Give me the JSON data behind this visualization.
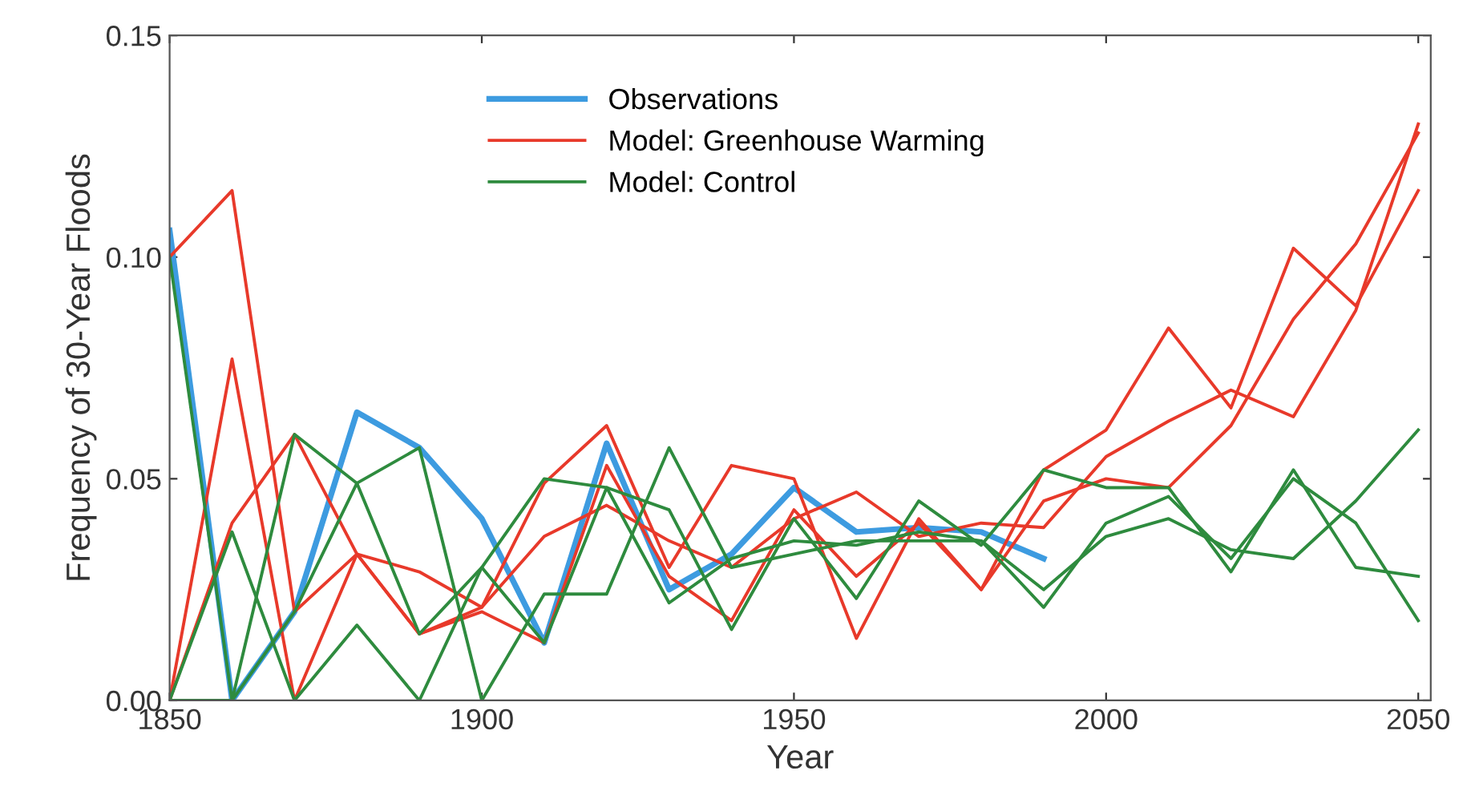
{
  "chart_data": {
    "type": "line",
    "xlabel": "Year",
    "ylabel": "Frequency of 30-Year Floods",
    "xlim": [
      1850,
      2052
    ],
    "xticks": [
      1850,
      1900,
      1950,
      2000,
      2050
    ],
    "ylim": [
      0,
      0.15
    ],
    "yticks": [
      {
        "value": 0,
        "label": "0.00"
      },
      {
        "value": 0.05,
        "label": "0.05"
      },
      {
        "value": 0.1,
        "label": "0.10"
      },
      {
        "value": 0.15,
        "label": "0.15"
      }
    ],
    "grid": false,
    "legend": "top",
    "marker": "none",
    "line_style": "solid",
    "series": [
      {
        "name": "Observations",
        "color": "#3d9be0",
        "x": [
          1850,
          1860,
          1870,
          1880,
          1890,
          1900,
          1910,
          1920,
          1930,
          1940,
          1950,
          1960,
          1970,
          1980,
          1990
        ],
        "values": [
          0.106,
          0.0,
          0.02,
          0.065,
          0.057,
          0.041,
          0.013,
          0.058,
          0.025,
          0.033,
          0.048,
          0.038,
          0.039,
          0.038,
          0.032
        ]
      },
      {
        "name": "Model: Greenhouse Warming",
        "color": "#e8392a",
        "x": [
          1850,
          1860,
          1870,
          1880,
          1890,
          1900,
          1910,
          1920,
          1930,
          1940,
          1950,
          1960,
          1970,
          1980,
          1990,
          2000,
          2010,
          2020,
          2030,
          2040,
          2050
        ],
        "values": [
          0.1,
          0.115,
          0.02,
          0.033,
          0.029,
          0.021,
          0.037,
          0.044,
          0.036,
          0.03,
          0.041,
          0.047,
          0.037,
          0.04,
          0.039,
          0.055,
          0.063,
          0.07,
          0.064,
          0.088,
          0.13
        ]
      },
      {
        "color": "#e8392a",
        "x": [
          1850,
          1860,
          1870,
          1880,
          1890,
          1900,
          1910,
          1920,
          1930,
          1940,
          1950,
          1960,
          1970,
          1980,
          1990,
          2000,
          2010,
          2020,
          2030,
          2040,
          2050
        ],
        "values": [
          0.0,
          0.077,
          0.0,
          0.033,
          0.015,
          0.021,
          0.049,
          0.062,
          0.03,
          0.053,
          0.05,
          0.014,
          0.041,
          0.025,
          0.052,
          0.061,
          0.084,
          0.066,
          0.102,
          0.089,
          0.115
        ]
      },
      {
        "color": "#e8392a",
        "x": [
          1850,
          1860,
          1870,
          1880,
          1890,
          1900,
          1910,
          1920,
          1930,
          1940,
          1950,
          1960,
          1970,
          1980,
          1990,
          2000,
          2010,
          2020,
          2030,
          2040,
          2050
        ],
        "values": [
          0.0,
          0.04,
          0.06,
          0.033,
          0.015,
          0.02,
          0.013,
          0.053,
          0.028,
          0.018,
          0.043,
          0.028,
          0.04,
          0.025,
          0.045,
          0.05,
          0.048,
          0.062,
          0.086,
          0.103,
          0.128
        ]
      },
      {
        "name": "Model: Control",
        "color": "#2e8b3e",
        "x": [
          1850,
          1860,
          1870,
          1880,
          1890,
          1900,
          1910,
          1920,
          1930,
          1940,
          1950,
          1960,
          1970,
          1980,
          1990,
          2000,
          2010,
          2020,
          2030,
          2040,
          2050
        ],
        "values": [
          0.1,
          0.0,
          0.06,
          0.049,
          0.015,
          0.03,
          0.013,
          0.048,
          0.043,
          0.016,
          0.041,
          0.023,
          0.045,
          0.035,
          0.052,
          0.048,
          0.048,
          0.029,
          0.052,
          0.03,
          0.028
        ]
      },
      {
        "color": "#2e8b3e",
        "x": [
          1850,
          1860,
          1870,
          1880,
          1890,
          1900,
          1910,
          1920,
          1930,
          1940,
          1950,
          1960,
          1970,
          1980,
          1990,
          2000,
          2010,
          2020,
          2030,
          2040,
          2050
        ],
        "values": [
          0.0,
          0.038,
          0.0,
          0.017,
          0.0,
          0.03,
          0.05,
          0.048,
          0.022,
          0.032,
          0.036,
          0.035,
          0.038,
          0.036,
          0.025,
          0.037,
          0.041,
          0.034,
          0.032,
          0.045,
          0.061
        ]
      },
      {
        "color": "#2e8b3e",
        "x": [
          1850,
          1860,
          1870,
          1880,
          1890,
          1900,
          1910,
          1920,
          1930,
          1940,
          1950,
          1960,
          1970,
          1980,
          1990,
          2000,
          2010,
          2020,
          2030,
          2040,
          2050
        ],
        "values": [
          0.0,
          0.0,
          0.02,
          0.049,
          0.057,
          0.0,
          0.024,
          0.024,
          0.057,
          0.03,
          0.033,
          0.036,
          0.036,
          0.036,
          0.021,
          0.04,
          0.046,
          0.032,
          0.05,
          0.04,
          0.018
        ]
      }
    ]
  }
}
